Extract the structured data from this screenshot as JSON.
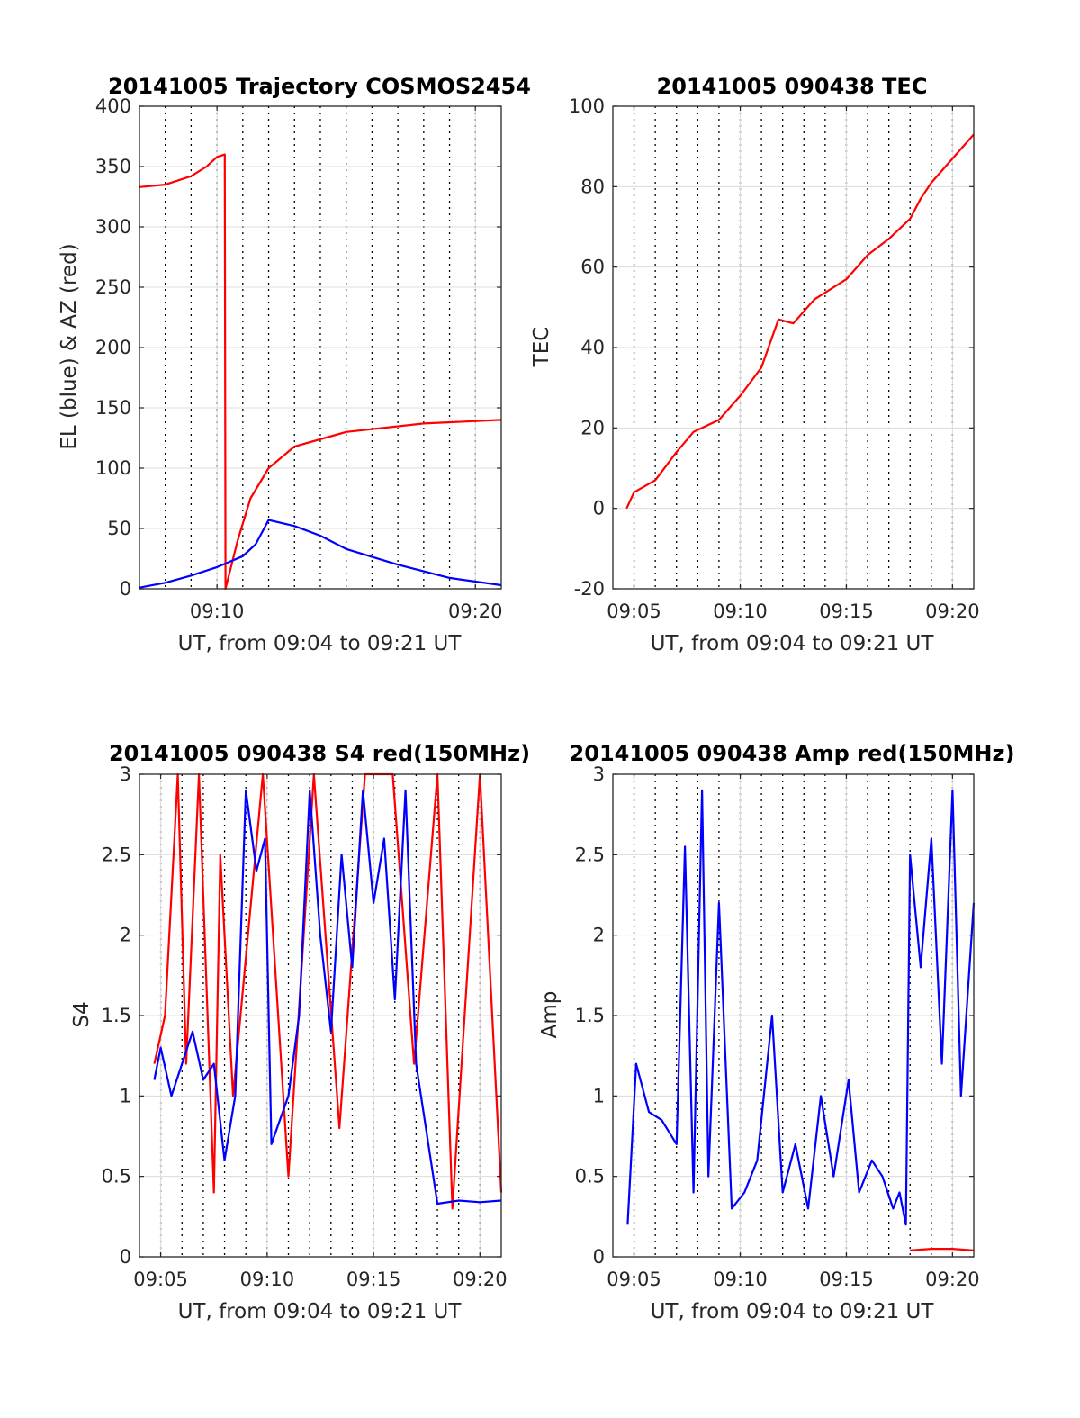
{
  "chart_data": [
    {
      "id": "trajectory",
      "type": "line",
      "title": "20141005 Trajectory COSMOS2454",
      "xlabel": "UT, from 09:04 to 09:21 UT",
      "ylabel": "EL (blue) & AZ (red)",
      "xlim": [
        9.1167,
        9.35
      ],
      "ylim": [
        0,
        400
      ],
      "xticks": [
        {
          "v": 9.1667,
          "label": "09:10"
        },
        {
          "v": 9.3333,
          "label": "09:20"
        }
      ],
      "yticks": [
        0,
        50,
        100,
        150,
        200,
        250,
        300,
        350,
        400
      ],
      "grid": true,
      "series": [
        {
          "color": "#ff0000",
          "x": [
            9.1167,
            9.1333,
            9.15,
            9.16,
            9.1667,
            9.1717,
            9.1722,
            9.18,
            9.1883,
            9.2,
            9.2167,
            9.25,
            9.3,
            9.35
          ],
          "values": [
            333,
            335,
            342,
            350,
            358,
            360,
            0,
            40,
            75,
            100,
            118,
            130,
            137,
            140
          ]
        },
        {
          "color": "#0000ff",
          "x": [
            9.1167,
            9.1333,
            9.15,
            9.1667,
            9.1833,
            9.1917,
            9.2,
            9.2167,
            9.2333,
            9.25,
            9.2833,
            9.3167,
            9.35
          ],
          "values": [
            1,
            5,
            11,
            18,
            27,
            37,
            57,
            52,
            44,
            33,
            20,
            9,
            3
          ]
        }
      ]
    },
    {
      "id": "tec",
      "type": "line",
      "title": "20141005 090438 TEC",
      "xlabel": "UT, from 09:04 to 09:21 UT",
      "ylabel": "TEC",
      "xlim": [
        9.0667,
        9.35
      ],
      "ylim": [
        -20,
        100
      ],
      "xticks": [
        {
          "v": 9.0833,
          "label": "09:05"
        },
        {
          "v": 9.1667,
          "label": "09:10"
        },
        {
          "v": 9.25,
          "label": "09:15"
        },
        {
          "v": 9.3333,
          "label": "09:20"
        }
      ],
      "yticks": [
        -20,
        0,
        20,
        40,
        60,
        80,
        100
      ],
      "grid": true,
      "series": [
        {
          "color": "#ff0000",
          "x": [
            9.0775,
            9.0833,
            9.1,
            9.1167,
            9.13,
            9.15,
            9.1667,
            9.1833,
            9.1967,
            9.2083,
            9.225,
            9.25,
            9.2667,
            9.2833,
            9.3,
            9.3083,
            9.3167,
            9.3333,
            9.35
          ],
          "values": [
            0,
            4,
            7,
            14,
            19,
            22,
            28,
            35,
            47,
            46,
            52,
            57,
            63,
            67,
            72,
            77,
            81,
            87,
            93
          ]
        }
      ]
    },
    {
      "id": "s4",
      "type": "line",
      "title": "20141005 090438 S4 red(150MHz)",
      "xlabel": "UT, from 09:04 to 09:21 UT",
      "ylabel": "S4",
      "xlim": [
        9.0667,
        9.35
      ],
      "ylim": [
        0,
        3
      ],
      "xticks": [
        {
          "v": 9.0833,
          "label": "09:05"
        },
        {
          "v": 9.1667,
          "label": "09:10"
        },
        {
          "v": 9.25,
          "label": "09:15"
        },
        {
          "v": 9.3333,
          "label": "09:20"
        }
      ],
      "yticks": [
        0,
        0.5,
        1,
        1.5,
        2,
        2.5,
        3
      ],
      "grid": true,
      "series": [
        {
          "color": "#ff0000",
          "x": [
            9.0783,
            9.0867,
            9.0967,
            9.1033,
            9.1133,
            9.125,
            9.13,
            9.14,
            9.1633,
            9.1833,
            9.2033,
            9.2233,
            9.2433,
            9.265,
            9.2817,
            9.3,
            9.3117,
            9.3333,
            9.35
          ],
          "values": [
            1.2,
            1.5,
            3.0,
            1.2,
            3.0,
            0.4,
            2.5,
            1.0,
            3.0,
            0.5,
            3.0,
            0.8,
            3.0,
            3.0,
            1.2,
            3.0,
            0.3,
            3.0,
            0.4
          ]
        },
        {
          "color": "#0000ff",
          "x": [
            9.0783,
            9.0833,
            9.0917,
            9.1,
            9.1083,
            9.1167,
            9.125,
            9.1333,
            9.1417,
            9.15,
            9.1583,
            9.165,
            9.17,
            9.1833,
            9.1917,
            9.2,
            9.2083,
            9.2167,
            9.225,
            9.2333,
            9.2417,
            9.25,
            9.2583,
            9.2667,
            9.275,
            9.2833,
            9.3,
            9.3167,
            9.3333,
            9.35
          ],
          "values": [
            1.1,
            1.3,
            1.0,
            1.2,
            1.4,
            1.1,
            1.2,
            0.6,
            1.0,
            2.9,
            2.4,
            2.6,
            0.7,
            1.0,
            1.5,
            2.9,
            2.0,
            1.4,
            2.5,
            1.8,
            2.9,
            2.2,
            2.6,
            1.6,
            2.9,
            1.2,
            0.33,
            0.35,
            0.34,
            0.35
          ]
        }
      ]
    },
    {
      "id": "amp",
      "type": "line",
      "title": "20141005 090438 Amp red(150MHz)",
      "xlabel": "UT, from 09:04 to 09:21 UT",
      "ylabel": "Amp",
      "xlim": [
        9.0667,
        9.35
      ],
      "ylim": [
        0,
        3
      ],
      "xticks": [
        {
          "v": 9.0833,
          "label": "09:05"
        },
        {
          "v": 9.1667,
          "label": "09:10"
        },
        {
          "v": 9.25,
          "label": "09:15"
        },
        {
          "v": 9.3333,
          "label": "09:20"
        }
      ],
      "yticks": [
        0,
        0.5,
        1,
        1.5,
        2,
        2.5,
        3
      ],
      "grid": true,
      "series": [
        {
          "color": "#0000ff",
          "x": [
            9.0783,
            9.085,
            9.095,
            9.105,
            9.1167,
            9.1233,
            9.13,
            9.1367,
            9.1417,
            9.15,
            9.16,
            9.17,
            9.18,
            9.1917,
            9.2,
            9.21,
            9.22,
            9.23,
            9.24,
            9.2517,
            9.26,
            9.27,
            9.2783,
            9.2867,
            9.2917,
            9.2967,
            9.3,
            9.3083,
            9.3167,
            9.325,
            9.3333,
            9.34,
            9.35
          ],
          "values": [
            0.2,
            1.2,
            0.9,
            0.85,
            0.7,
            2.55,
            0.4,
            2.9,
            0.5,
            2.2,
            0.3,
            0.4,
            0.6,
            1.5,
            0.4,
            0.7,
            0.3,
            1.0,
            0.5,
            1.1,
            0.4,
            0.6,
            0.5,
            0.3,
            0.4,
            0.2,
            2.5,
            1.8,
            2.6,
            1.2,
            2.9,
            1.0,
            2.2
          ]
        },
        {
          "color": "#ff0000",
          "x": [
            9.3,
            9.3167,
            9.3333,
            9.35
          ],
          "values": [
            0.04,
            0.05,
            0.05,
            0.04
          ]
        }
      ]
    }
  ]
}
